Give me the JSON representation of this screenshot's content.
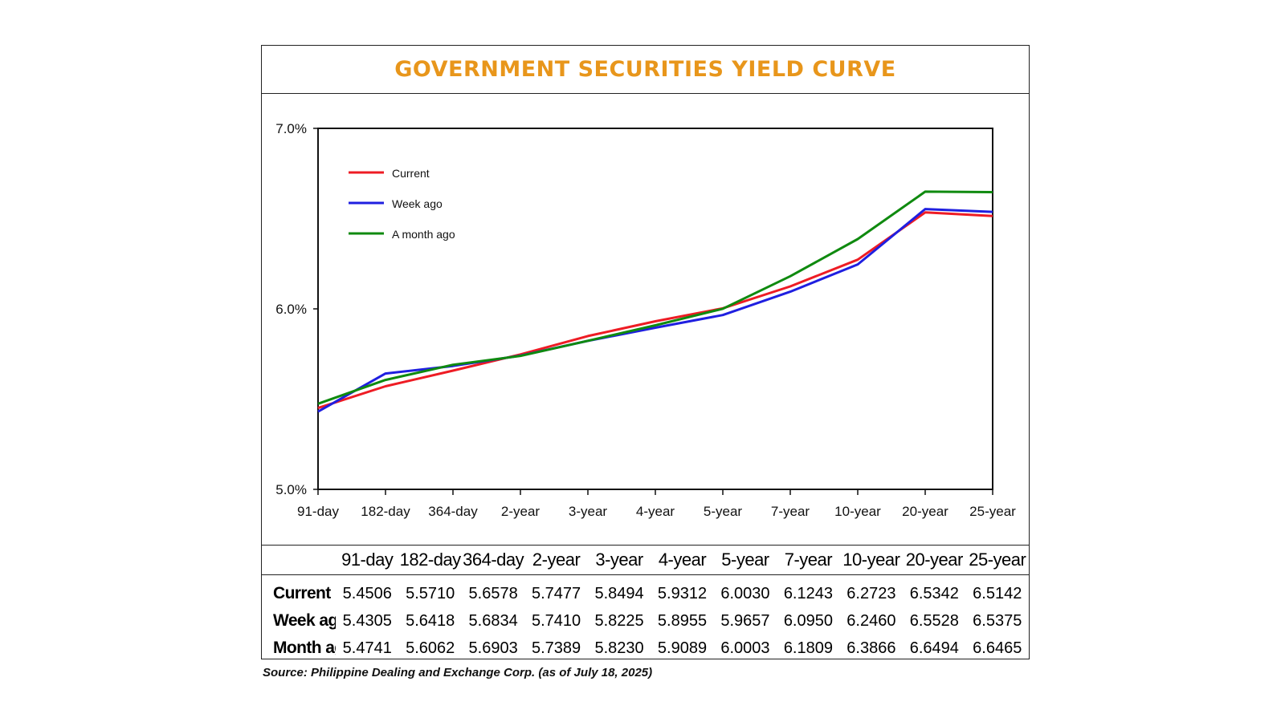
{
  "title": "GOVERNMENT SECURITIES YIELD CURVE",
  "source": "Source: Philippine Dealing and Exchange Corp. (as of July 18, 2025)",
  "chart_data": {
    "type": "line",
    "title": "GOVERNMENT SECURITIES YIELD CURVE",
    "categories": [
      "91-day",
      "182-day",
      "364-day",
      "2-year",
      "3-year",
      "4-year",
      "5-year",
      "7-year",
      "10-year",
      "20-year",
      "25-year"
    ],
    "series": [
      {
        "name": "Current",
        "color": "#ee1c24",
        "values": [
          5.4506,
          5.571,
          5.6578,
          5.7477,
          5.8494,
          5.9312,
          6.003,
          6.1243,
          6.2723,
          6.5342,
          6.5142
        ]
      },
      {
        "name": "Week ago",
        "color": "#1f1fe0",
        "values": [
          5.4305,
          5.6418,
          5.6834,
          5.741,
          5.8225,
          5.8955,
          5.9657,
          6.095,
          6.246,
          6.5528,
          6.5375
        ]
      },
      {
        "name": "A month ago",
        "color": "#0f8a0f",
        "values": [
          5.4741,
          5.6062,
          5.6903,
          5.7389,
          5.823,
          5.9089,
          6.0003,
          6.1809,
          6.3866,
          6.6494,
          6.6465
        ]
      }
    ],
    "ylim": [
      5.0,
      7.0
    ],
    "yticks": [
      "5.0%",
      "6.0%",
      "7.0%"
    ],
    "grid": false,
    "legend_position": "top-left",
    "xlabel": "",
    "ylabel": ""
  },
  "table": {
    "headers": [
      "91-day",
      "182-day",
      "364-day",
      "2-year",
      "3-year",
      "4-year",
      "5-year",
      "7-year",
      "10-year",
      "20-year",
      "25-year"
    ],
    "rows": [
      {
        "label": "Current",
        "values": [
          "5.4506",
          "5.5710",
          "5.6578",
          "5.7477",
          "5.8494",
          "5.9312",
          "6.0030",
          "6.1243",
          "6.2723",
          "6.5342",
          "6.5142"
        ]
      },
      {
        "label": "Week ago",
        "values": [
          "5.4305",
          "5.6418",
          "5.6834",
          "5.7410",
          "5.8225",
          "5.8955",
          "5.9657",
          "6.0950",
          "6.2460",
          "6.5528",
          "6.5375"
        ]
      },
      {
        "label": "Month ago",
        "values": [
          "5.4741",
          "5.6062",
          "5.6903",
          "5.7389",
          "5.8230",
          "5.9089",
          "6.0003",
          "6.1809",
          "6.3866",
          "6.6494",
          "6.6465"
        ]
      }
    ]
  }
}
